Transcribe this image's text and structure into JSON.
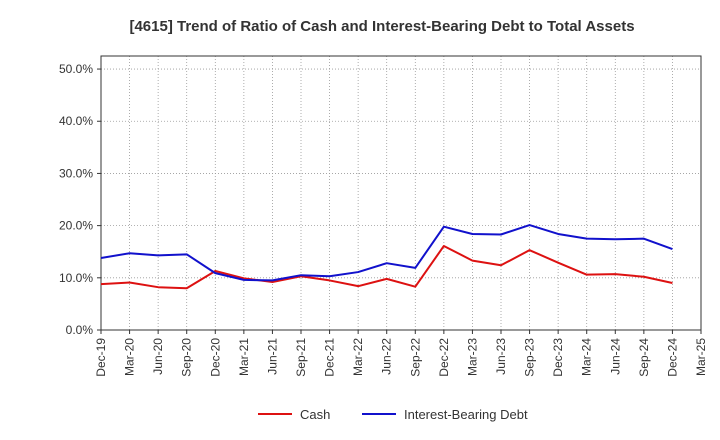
{
  "chart_data": {
    "type": "line",
    "title": "[4615]  Trend of Ratio of Cash and Interest-Bearing Debt to Total Assets",
    "xlabel": "",
    "ylabel": "",
    "categories": [
      "Dec-19",
      "Mar-20",
      "Jun-20",
      "Sep-20",
      "Dec-20",
      "Mar-21",
      "Jun-21",
      "Sep-21",
      "Dec-21",
      "Mar-22",
      "Jun-22",
      "Sep-22",
      "Dec-22",
      "Mar-23",
      "Jun-23",
      "Sep-23",
      "Dec-23",
      "Mar-24",
      "Jun-24",
      "Sep-24",
      "Dec-24",
      "Mar-25"
    ],
    "ylim": [
      0,
      52.5
    ],
    "yticks": [
      0,
      10,
      20,
      30,
      40,
      50
    ],
    "ytick_labels": [
      "0.0%",
      "10.0%",
      "20.0%",
      "30.0%",
      "40.0%",
      "50.0%"
    ],
    "grid": true,
    "legend_position": "bottom",
    "series": [
      {
        "name": "Cash",
        "color": "#dd1111",
        "values": [
          8.8,
          9.1,
          8.2,
          8.0,
          11.3,
          9.9,
          9.2,
          10.3,
          9.5,
          8.4,
          9.8,
          8.3,
          16.1,
          13.3,
          12.4,
          15.3,
          12.9,
          10.6,
          10.7,
          10.2,
          9.0,
          null
        ]
      },
      {
        "name": "Interest-Bearing Debt",
        "color": "#1111cc",
        "values": [
          13.8,
          14.7,
          14.3,
          14.5,
          10.9,
          9.6,
          9.5,
          10.5,
          10.3,
          11.1,
          12.8,
          11.9,
          19.8,
          18.4,
          18.3,
          20.1,
          18.4,
          17.5,
          17.4,
          17.5,
          15.5,
          null
        ]
      }
    ]
  }
}
